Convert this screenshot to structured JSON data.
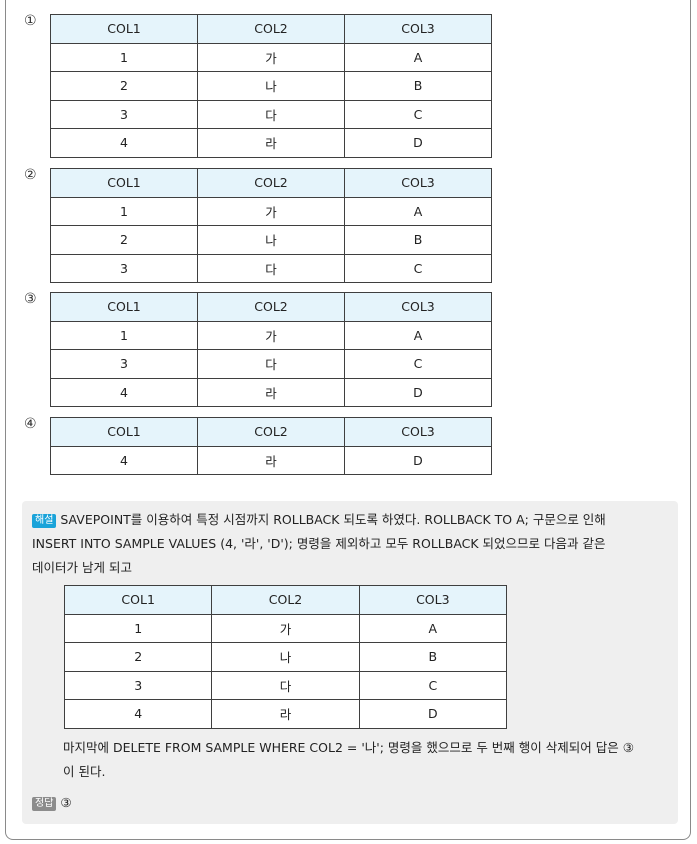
{
  "options": [
    {
      "marker": "①",
      "header": [
        "COL1",
        "COL2",
        "COL3"
      ],
      "rows": [
        [
          "1",
          "가",
          "A"
        ],
        [
          "2",
          "나",
          "B"
        ],
        [
          "3",
          "다",
          "C"
        ],
        [
          "4",
          "라",
          "D"
        ]
      ]
    },
    {
      "marker": "②",
      "header": [
        "COL1",
        "COL2",
        "COL3"
      ],
      "rows": [
        [
          "1",
          "가",
          "A"
        ],
        [
          "2",
          "나",
          "B"
        ],
        [
          "3",
          "다",
          "C"
        ]
      ]
    },
    {
      "marker": "③",
      "header": [
        "COL1",
        "COL2",
        "COL3"
      ],
      "rows": [
        [
          "1",
          "가",
          "A"
        ],
        [
          "3",
          "다",
          "C"
        ],
        [
          "4",
          "라",
          "D"
        ]
      ]
    },
    {
      "marker": "④",
      "header": [
        "COL1",
        "COL2",
        "COL3"
      ],
      "rows": [
        [
          "4",
          "라",
          "D"
        ]
      ]
    }
  ],
  "explanation": {
    "tag": "해설",
    "line1": "SAVEPOINT를 이용하여 특정 시점까지 ROLLBACK 되도록 하였다. ROLLBACK TO A; 구문으로 인해",
    "line2": "INSERT INTO SAMPLE VALUES (4, '라', 'D'); 명령을 제외하고 모두 ROLLBACK 되었으므로 다음과 같은",
    "line3": "데이터가 남게 되고",
    "table": {
      "header": [
        "COL1",
        "COL2",
        "COL3"
      ],
      "rows": [
        [
          "1",
          "가",
          "A"
        ],
        [
          "2",
          "나",
          "B"
        ],
        [
          "3",
          "다",
          "C"
        ],
        [
          "4",
          "라",
          "D"
        ]
      ]
    },
    "line4": "마지막에 DELETE FROM SAMPLE WHERE COL2 = '나'; 명령을 했으므로 두 번째 행이 삭제되어 답은 ③",
    "line5": "이 된다.",
    "answer_tag": "정답",
    "answer": "③"
  }
}
